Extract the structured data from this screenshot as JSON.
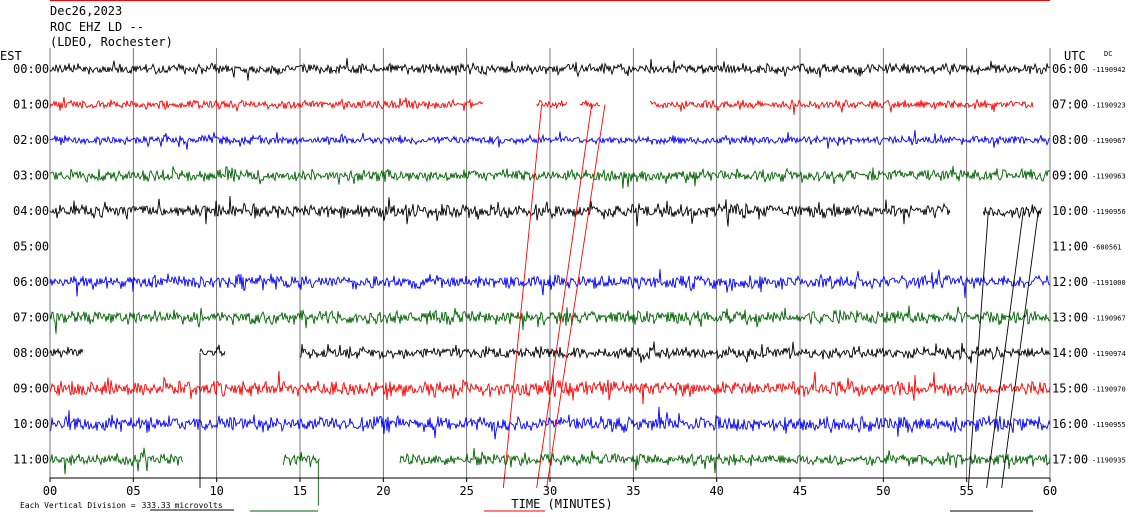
{
  "header": {
    "date": "Dec26,2023",
    "station": "ROC EHZ LD --",
    "network": "(LDEO, Rochester)"
  },
  "chart_data": {
    "type": "line",
    "title": "ROC EHZ LD --",
    "xlabel": "TIME (MINUTES)",
    "xlim": [
      0,
      60
    ],
    "x_ticks": [
      "00",
      "05",
      "10",
      "15",
      "20",
      "25",
      "30",
      "35",
      "40",
      "45",
      "50",
      "55",
      "60"
    ],
    "left_axis_label": "EST",
    "right_axis_label": "UTC",
    "dc_label": "DC",
    "grid": true,
    "vertical_division": "333.33",
    "vertical_division_prefix": "Each Vertical Division =",
    "vertical_division_unit": "microvolts",
    "colors": {
      "black": "#000000",
      "red": "#ff0000",
      "blue": "#0000ff",
      "green": "#006400"
    },
    "series": [
      {
        "est": "00:00",
        "utc": "06:00",
        "dc": "-1190942",
        "color": "black",
        "amp": 6,
        "segments": [
          [
            0,
            60
          ]
        ]
      },
      {
        "est": "01:00",
        "utc": "07:00",
        "dc": "-1190923",
        "color": "red",
        "amp": 5,
        "segments": [
          [
            0,
            26
          ],
          [
            29.2,
            31
          ],
          [
            31.8,
            33
          ],
          [
            36,
            59
          ]
        ]
      },
      {
        "est": "02:00",
        "utc": "08:00",
        "dc": "-1190967",
        "color": "blue",
        "amp": 5,
        "segments": [
          [
            0,
            60
          ]
        ]
      },
      {
        "est": "03:00",
        "utc": "09:00",
        "dc": "-1190963",
        "color": "green",
        "amp": 7,
        "segments": [
          [
            0,
            60
          ]
        ]
      },
      {
        "est": "04:00",
        "utc": "10:00",
        "dc": "-1190956",
        "color": "black",
        "amp": 8,
        "segments": [
          [
            0,
            54
          ],
          [
            56,
            59.5
          ]
        ]
      },
      {
        "est": "05:00",
        "utc": "11:00",
        "dc": "-680561",
        "color": "red",
        "amp": 0,
        "segments": []
      },
      {
        "est": "06:00",
        "utc": "12:00",
        "dc": "-1191000",
        "color": "blue",
        "amp": 8,
        "segments": [
          [
            0,
            60
          ]
        ]
      },
      {
        "est": "07:00",
        "utc": "13:00",
        "dc": "-1190967",
        "color": "green",
        "amp": 8,
        "segments": [
          [
            0,
            60
          ]
        ]
      },
      {
        "est": "08:00",
        "utc": "14:00",
        "dc": "-1190974",
        "color": "black",
        "amp": 7,
        "segments": [
          [
            0,
            2
          ],
          [
            9,
            10.5
          ],
          [
            15,
            60
          ]
        ]
      },
      {
        "est": "09:00",
        "utc": "15:00",
        "dc": "-1190970",
        "color": "red",
        "amp": 9,
        "segments": [
          [
            0,
            60
          ]
        ]
      },
      {
        "est": "10:00",
        "utc": "16:00",
        "dc": "-1190955",
        "color": "blue",
        "amp": 9,
        "segments": [
          [
            0,
            60
          ]
        ]
      },
      {
        "est": "11:00",
        "utc": "17:00",
        "dc": "-1190935",
        "color": "green",
        "amp": 7,
        "segments": [
          [
            0,
            8
          ],
          [
            14,
            16.2
          ],
          [
            21,
            60
          ]
        ]
      }
    ]
  }
}
